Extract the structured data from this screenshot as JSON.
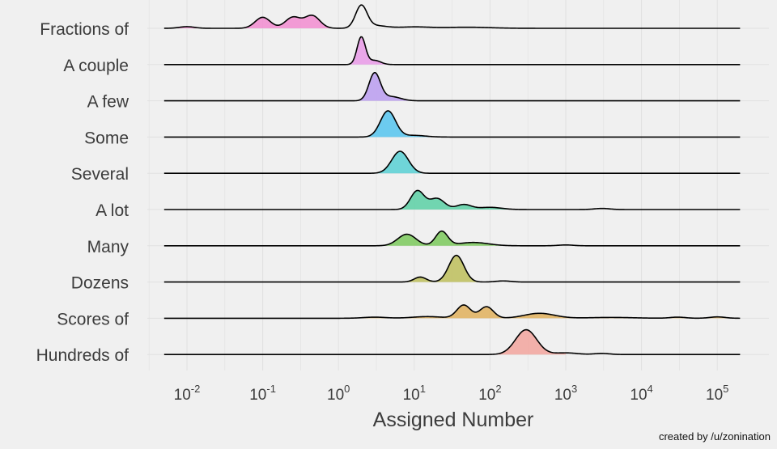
{
  "chart_data": {
    "type": "ridgeline",
    "xlabel": "Assigned Number",
    "x_scale": "log10",
    "xlim": [
      0.005,
      200000
    ],
    "x_tick_labels": [
      {
        "value": 0.01,
        "base": "10",
        "exp": "-2"
      },
      {
        "value": 0.1,
        "base": "10",
        "exp": "-1"
      },
      {
        "value": 1,
        "base": "10",
        "exp": "0"
      },
      {
        "value": 10,
        "base": "10",
        "exp": "1"
      },
      {
        "value": 100,
        "base": "10",
        "exp": "2"
      },
      {
        "value": 1000,
        "base": "10",
        "exp": "3"
      },
      {
        "value": 10000,
        "base": "10",
        "exp": "4"
      },
      {
        "value": 100000,
        "base": "10",
        "exp": "5"
      }
    ],
    "caption": "created by /u/zonination",
    "series": [
      {
        "name": "Fractions of",
        "color": "#f28cd0",
        "fill_range": [
          0.005,
          1
        ],
        "peaks": [
          {
            "x": 0.01,
            "h": 0.06,
            "w": 0.1
          },
          {
            "x": 0.1,
            "h": 0.4,
            "w": 0.1
          },
          {
            "x": 0.25,
            "h": 0.4,
            "w": 0.1
          },
          {
            "x": 0.45,
            "h": 0.46,
            "w": 0.1
          },
          {
            "x": 2,
            "h": 0.8,
            "w": 0.075
          },
          {
            "x": 3,
            "h": 0.1,
            "w": 0.15
          },
          {
            "x": 10,
            "h": 0.05,
            "w": 0.2
          },
          {
            "x": 50,
            "h": 0.04,
            "w": 0.3
          }
        ]
      },
      {
        "name": "A couple",
        "color": "#e99ae7",
        "fill_range": [
          1,
          7
        ],
        "peaks": [
          {
            "x": 2,
            "h": 1.0,
            "w": 0.055
          },
          {
            "x": 3,
            "h": 0.15,
            "w": 0.08
          }
        ]
      },
      {
        "name": "A few",
        "color": "#ba9cf0",
        "fill_range": [
          1.5,
          15
        ],
        "peaks": [
          {
            "x": 3,
            "h": 1.0,
            "w": 0.075
          },
          {
            "x": 5,
            "h": 0.15,
            "w": 0.12
          }
        ]
      },
      {
        "name": "Some",
        "color": "#55c4ee",
        "fill_range": [
          1.5,
          20
        ],
        "peaks": [
          {
            "x": 4.5,
            "h": 0.95,
            "w": 0.1
          },
          {
            "x": 10,
            "h": 0.06,
            "w": 0.15
          }
        ]
      },
      {
        "name": "Several",
        "color": "#58d0d4",
        "fill_range": [
          2,
          20
        ],
        "peaks": [
          {
            "x": 6.5,
            "h": 0.8,
            "w": 0.11
          }
        ]
      },
      {
        "name": "A lot",
        "color": "#5ad0a4",
        "fill_range": [
          3,
          200
        ],
        "peaks": [
          {
            "x": 11,
            "h": 0.68,
            "w": 0.09
          },
          {
            "x": 20,
            "h": 0.4,
            "w": 0.1
          },
          {
            "x": 45,
            "h": 0.18,
            "w": 0.1
          },
          {
            "x": 100,
            "h": 0.08,
            "w": 0.15
          },
          {
            "x": 3000,
            "h": 0.04,
            "w": 0.1
          }
        ]
      },
      {
        "name": "Many",
        "color": "#7bc95c",
        "fill_range": [
          4,
          200
        ],
        "peaks": [
          {
            "x": 8,
            "h": 0.42,
            "w": 0.12
          },
          {
            "x": 23,
            "h": 0.52,
            "w": 0.08
          },
          {
            "x": 60,
            "h": 0.12,
            "w": 0.2
          },
          {
            "x": 1000,
            "h": 0.03,
            "w": 0.1
          }
        ]
      },
      {
        "name": "Dozens",
        "color": "#bdbe5a",
        "fill_range": [
          8,
          100
        ],
        "peaks": [
          {
            "x": 12,
            "h": 0.18,
            "w": 0.08
          },
          {
            "x": 36,
            "h": 0.97,
            "w": 0.1
          },
          {
            "x": 150,
            "h": 0.04,
            "w": 0.1
          }
        ]
      },
      {
        "name": "Scores of",
        "color": "#e0b05c",
        "fill_range": [
          2,
          200000
        ],
        "peaks": [
          {
            "x": 3,
            "h": 0.04,
            "w": 0.15
          },
          {
            "x": 15,
            "h": 0.06,
            "w": 0.2
          },
          {
            "x": 45,
            "h": 0.48,
            "w": 0.09
          },
          {
            "x": 90,
            "h": 0.42,
            "w": 0.09
          },
          {
            "x": 450,
            "h": 0.18,
            "w": 0.2
          },
          {
            "x": 4000,
            "h": 0.03,
            "w": 0.3
          },
          {
            "x": 30000,
            "h": 0.04,
            "w": 0.1
          },
          {
            "x": 100000,
            "h": 0.05,
            "w": 0.1
          }
        ]
      },
      {
        "name": "Hundreds of",
        "color": "#f2a49e",
        "fill_range": [
          100,
          1000
        ],
        "peaks": [
          {
            "x": 300,
            "h": 0.9,
            "w": 0.14
          },
          {
            "x": 1000,
            "h": 0.06,
            "w": 0.15
          },
          {
            "x": 3000,
            "h": 0.04,
            "w": 0.1
          }
        ]
      }
    ]
  }
}
